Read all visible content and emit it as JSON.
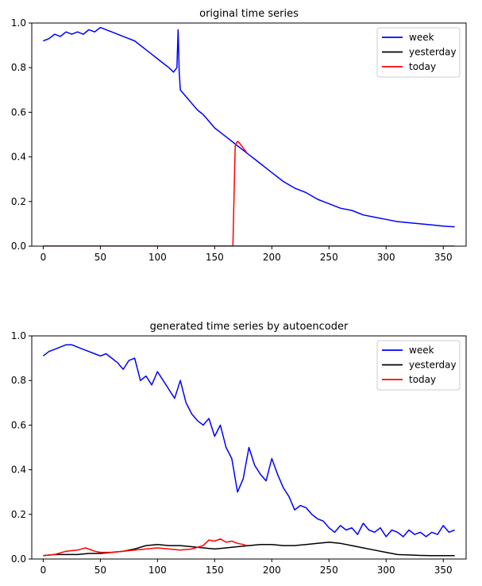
{
  "chart_data": [
    {
      "type": "line",
      "title": "original time series",
      "xlabel": "",
      "ylabel": "",
      "xlim": [
        -10,
        370
      ],
      "ylim": [
        0,
        1.0
      ],
      "xticks": [
        0,
        50,
        100,
        150,
        200,
        250,
        300,
        350
      ],
      "yticks": [
        0.0,
        0.2,
        0.4,
        0.6,
        0.8,
        1.0
      ],
      "xtick_labels": [
        "0",
        "50",
        "100",
        "150",
        "200",
        "250",
        "300",
        "350"
      ],
      "ytick_labels": [
        "0.0",
        "0.2",
        "0.4",
        "0.6",
        "0.8",
        "1.0"
      ],
      "grid": false,
      "legend_position": "top-right",
      "series": [
        {
          "name": "week",
          "color": "#0000ff",
          "x": [
            0,
            5,
            10,
            15,
            20,
            25,
            30,
            35,
            40,
            45,
            50,
            55,
            60,
            65,
            70,
            75,
            80,
            85,
            90,
            95,
            100,
            105,
            110,
            114,
            117,
            118,
            119,
            120,
            125,
            130,
            135,
            140,
            145,
            150,
            155,
            160,
            165,
            170,
            175,
            180,
            185,
            190,
            195,
            200,
            210,
            220,
            230,
            240,
            250,
            260,
            270,
            280,
            290,
            300,
            310,
            320,
            330,
            340,
            350,
            355,
            360
          ],
          "y": [
            0.92,
            0.93,
            0.95,
            0.94,
            0.96,
            0.95,
            0.96,
            0.95,
            0.97,
            0.96,
            0.98,
            0.97,
            0.96,
            0.95,
            0.94,
            0.93,
            0.92,
            0.9,
            0.88,
            0.86,
            0.84,
            0.82,
            0.8,
            0.78,
            0.8,
            0.97,
            0.78,
            0.7,
            0.67,
            0.64,
            0.61,
            0.59,
            0.56,
            0.53,
            0.51,
            0.49,
            0.47,
            0.45,
            0.43,
            0.41,
            0.39,
            0.37,
            0.35,
            0.33,
            0.29,
            0.26,
            0.24,
            0.21,
            0.19,
            0.17,
            0.16,
            0.14,
            0.13,
            0.12,
            0.11,
            0.105,
            0.1,
            0.095,
            0.09,
            0.088,
            0.087
          ]
        },
        {
          "name": "yesterday",
          "color": "#000000",
          "x": [
            0,
            60,
            120,
            180,
            240,
            300,
            360
          ],
          "y": [
            0,
            0,
            0,
            0,
            0,
            0,
            0
          ]
        },
        {
          "name": "today",
          "color": "#ff0000",
          "x": [
            0,
            50,
            100,
            150,
            166,
            168,
            170,
            172,
            175,
            178
          ],
          "y": [
            0,
            0,
            0,
            0,
            0,
            0.45,
            0.47,
            0.46,
            0.44,
            0.42
          ]
        }
      ]
    },
    {
      "type": "line",
      "title": "generated time series by autoencoder",
      "xlabel": "",
      "ylabel": "",
      "xlim": [
        -10,
        370
      ],
      "ylim": [
        0,
        1.0
      ],
      "xticks": [
        0,
        50,
        100,
        150,
        200,
        250,
        300,
        350
      ],
      "yticks": [
        0.0,
        0.2,
        0.4,
        0.6,
        0.8,
        1.0
      ],
      "xtick_labels": [
        "0",
        "50",
        "100",
        "150",
        "200",
        "250",
        "300",
        "350"
      ],
      "ytick_labels": [
        "0.0",
        "0.2",
        "0.4",
        "0.6",
        "0.8",
        "1.0"
      ],
      "grid": false,
      "legend_position": "top-right",
      "series": [
        {
          "name": "week",
          "color": "#0000ff",
          "x": [
            0,
            5,
            10,
            15,
            20,
            25,
            30,
            35,
            40,
            45,
            50,
            55,
            60,
            65,
            70,
            75,
            80,
            85,
            90,
            95,
            100,
            105,
            110,
            115,
            120,
            125,
            130,
            135,
            140,
            145,
            150,
            155,
            160,
            165,
            170,
            175,
            180,
            185,
            190,
            195,
            200,
            205,
            210,
            215,
            220,
            225,
            230,
            235,
            240,
            245,
            250,
            255,
            260,
            265,
            270,
            275,
            280,
            285,
            290,
            295,
            300,
            305,
            310,
            315,
            320,
            325,
            330,
            335,
            340,
            345,
            350,
            355,
            360
          ],
          "y": [
            0.91,
            0.93,
            0.94,
            0.95,
            0.96,
            0.96,
            0.95,
            0.94,
            0.93,
            0.92,
            0.91,
            0.92,
            0.9,
            0.88,
            0.85,
            0.89,
            0.9,
            0.8,
            0.82,
            0.78,
            0.84,
            0.8,
            0.76,
            0.72,
            0.8,
            0.7,
            0.65,
            0.62,
            0.6,
            0.63,
            0.55,
            0.6,
            0.5,
            0.45,
            0.3,
            0.36,
            0.5,
            0.42,
            0.38,
            0.35,
            0.45,
            0.38,
            0.32,
            0.28,
            0.22,
            0.24,
            0.23,
            0.2,
            0.18,
            0.17,
            0.14,
            0.12,
            0.15,
            0.13,
            0.14,
            0.11,
            0.16,
            0.13,
            0.12,
            0.14,
            0.1,
            0.13,
            0.12,
            0.1,
            0.13,
            0.11,
            0.12,
            0.1,
            0.12,
            0.11,
            0.15,
            0.12,
            0.13
          ]
        },
        {
          "name": "yesterday",
          "color": "#000000",
          "x": [
            0,
            10,
            20,
            30,
            40,
            50,
            60,
            70,
            80,
            90,
            100,
            110,
            120,
            130,
            140,
            150,
            160,
            170,
            180,
            190,
            200,
            210,
            220,
            230,
            240,
            250,
            260,
            270,
            280,
            290,
            300,
            310,
            320,
            330,
            340,
            350,
            360
          ],
          "y": [
            0.015,
            0.02,
            0.02,
            0.02,
            0.025,
            0.025,
            0.03,
            0.035,
            0.045,
            0.06,
            0.065,
            0.06,
            0.06,
            0.055,
            0.05,
            0.045,
            0.05,
            0.055,
            0.06,
            0.065,
            0.065,
            0.06,
            0.06,
            0.065,
            0.07,
            0.075,
            0.07,
            0.06,
            0.05,
            0.04,
            0.03,
            0.02,
            0.018,
            0.016,
            0.015,
            0.015,
            0.015
          ]
        },
        {
          "name": "today",
          "color": "#ff0000",
          "x": [
            0,
            10,
            20,
            30,
            37,
            45,
            50,
            60,
            70,
            80,
            90,
            100,
            110,
            120,
            130,
            140,
            145,
            150,
            155,
            160,
            165,
            170,
            175,
            178
          ],
          "y": [
            0.015,
            0.02,
            0.035,
            0.04,
            0.05,
            0.035,
            0.03,
            0.03,
            0.035,
            0.04,
            0.045,
            0.05,
            0.045,
            0.04,
            0.045,
            0.06,
            0.085,
            0.08,
            0.09,
            0.075,
            0.08,
            0.07,
            0.065,
            0.06
          ]
        }
      ]
    }
  ]
}
